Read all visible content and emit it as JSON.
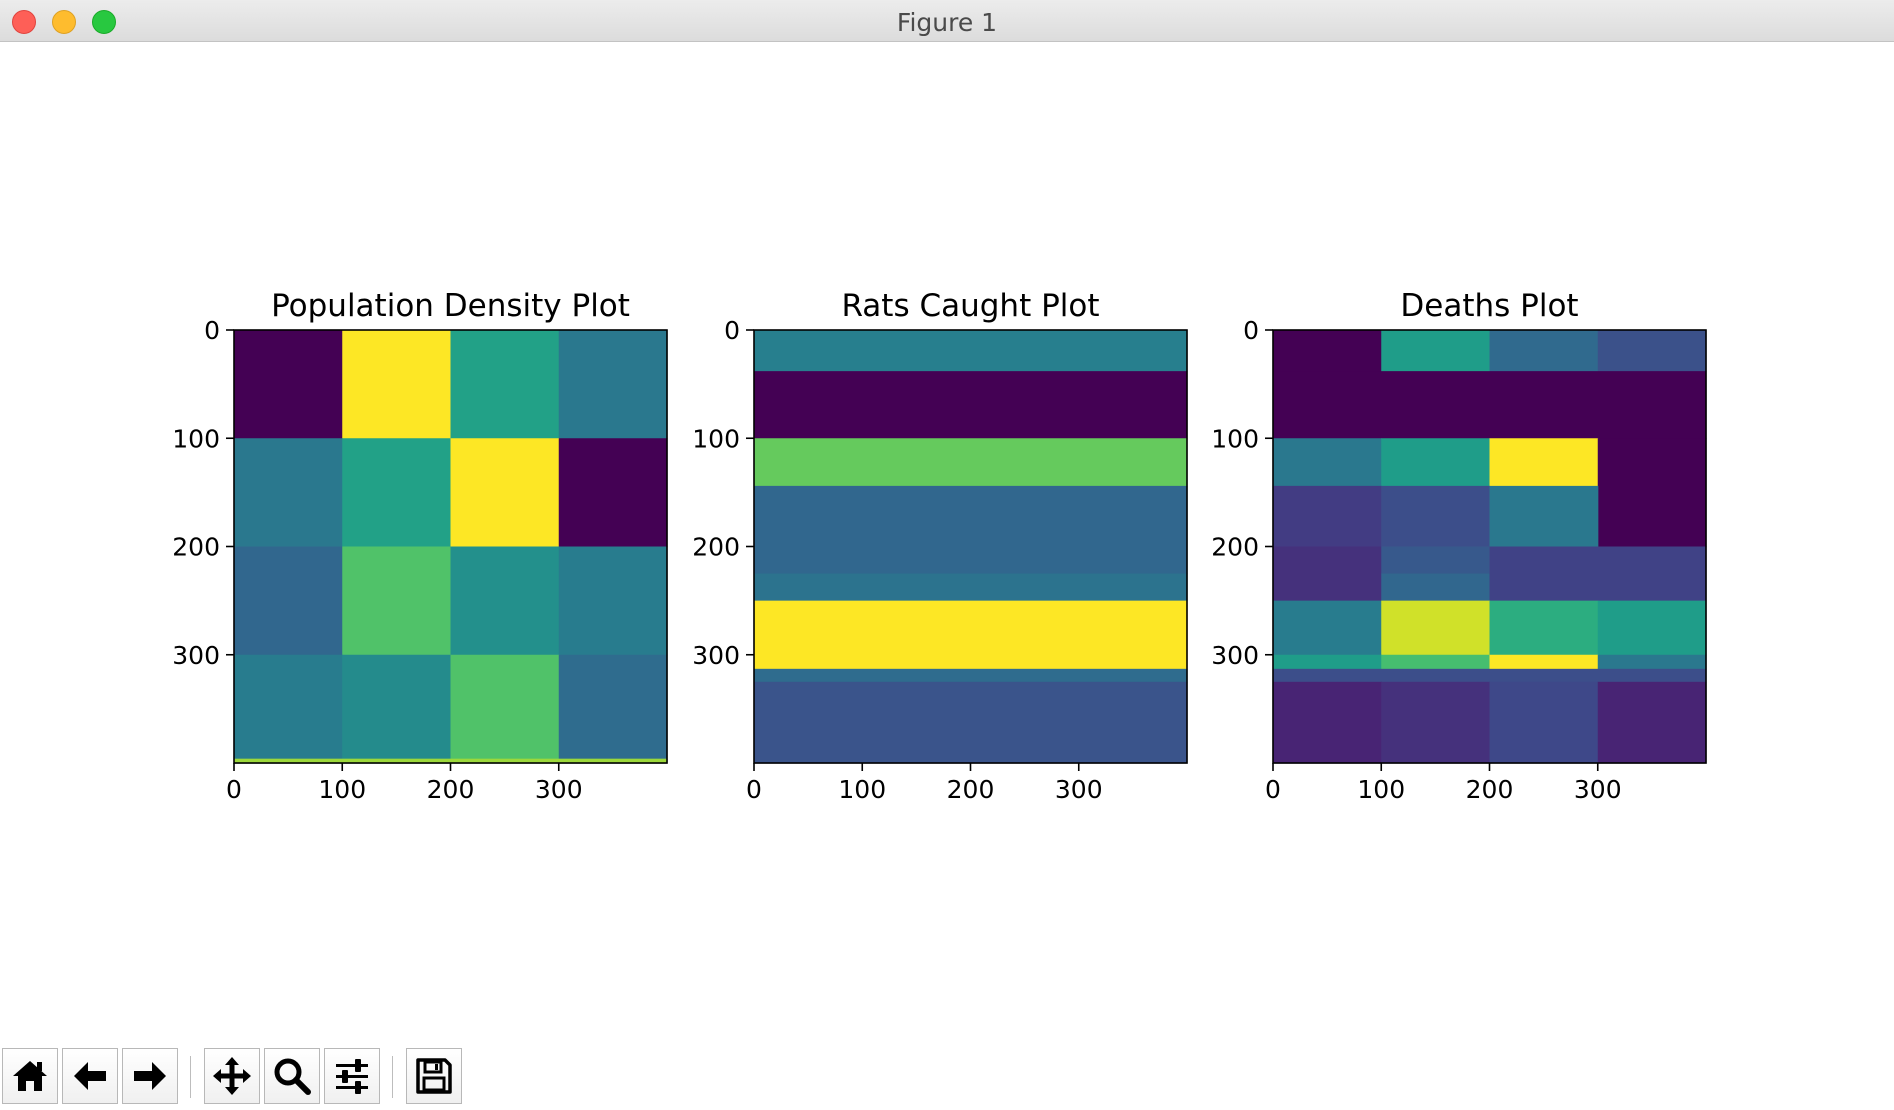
{
  "window": {
    "title": "Figure 1"
  },
  "toolbar": {
    "buttons": [
      {
        "name": "home-button",
        "icon": "home-icon"
      },
      {
        "name": "back-button",
        "icon": "arrow-left-icon"
      },
      {
        "name": "forward-button",
        "icon": "arrow-right-icon"
      },
      {
        "name": "pan-button",
        "icon": "move-icon"
      },
      {
        "name": "zoom-button",
        "icon": "magnifier-icon"
      },
      {
        "name": "configure-subplots-button",
        "icon": "sliders-icon"
      },
      {
        "name": "save-button",
        "icon": "floppy-disk-icon"
      }
    ]
  },
  "colors": {
    "viridis": [
      "#440154",
      "#482878",
      "#3e4989",
      "#31688e",
      "#26828e",
      "#1f9e89",
      "#35b779",
      "#6ece58",
      "#b5de2b",
      "#fde725"
    ]
  },
  "chart_data": [
    {
      "type": "heatmap",
      "title": "Population Density Plot",
      "colormap": "viridis",
      "xlim": [
        0,
        400
      ],
      "ylim": [
        400,
        0
      ],
      "xticks": [
        0,
        100,
        200,
        300
      ],
      "yticks": [
        0,
        100,
        200,
        300
      ],
      "cells": [
        {
          "x": [
            0,
            100
          ],
          "y": [
            0,
            100
          ],
          "value": 0.0
        },
        {
          "x": [
            100,
            200
          ],
          "y": [
            0,
            100
          ],
          "value": 1.0
        },
        {
          "x": [
            200,
            300
          ],
          "y": [
            0,
            100
          ],
          "value": 0.57
        },
        {
          "x": [
            300,
            400
          ],
          "y": [
            0,
            100
          ],
          "value": 0.4
        },
        {
          "x": [
            0,
            100
          ],
          "y": [
            100,
            200
          ],
          "value": 0.4
        },
        {
          "x": [
            100,
            200
          ],
          "y": [
            100,
            200
          ],
          "value": 0.57
        },
        {
          "x": [
            200,
            300
          ],
          "y": [
            100,
            200
          ],
          "value": 1.0
        },
        {
          "x": [
            300,
            400
          ],
          "y": [
            100,
            200
          ],
          "value": 0.0
        },
        {
          "x": [
            0,
            100
          ],
          "y": [
            200,
            300
          ],
          "value": 0.33
        },
        {
          "x": [
            100,
            200
          ],
          "y": [
            200,
            300
          ],
          "value": 0.72
        },
        {
          "x": [
            200,
            300
          ],
          "y": [
            200,
            300
          ],
          "value": 0.5
        },
        {
          "x": [
            300,
            400
          ],
          "y": [
            200,
            300
          ],
          "value": 0.42
        },
        {
          "x": [
            0,
            100
          ],
          "y": [
            300,
            400
          ],
          "value": 0.42
        },
        {
          "x": [
            100,
            200
          ],
          "y": [
            300,
            400
          ],
          "value": 0.48
        },
        {
          "x": [
            200,
            300
          ],
          "y": [
            300,
            400
          ],
          "value": 0.72
        },
        {
          "x": [
            300,
            400
          ],
          "y": [
            300,
            400
          ],
          "value": 0.35
        },
        {
          "x": [
            0,
            400
          ],
          "y": [
            396,
            400
          ],
          "value": 0.85
        }
      ]
    },
    {
      "type": "heatmap",
      "title": "Rats Caught Plot",
      "colormap": "viridis",
      "xlim": [
        0,
        400
      ],
      "ylim": [
        400,
        0
      ],
      "xticks": [
        0,
        100,
        200,
        300
      ],
      "yticks": [
        0,
        100,
        200,
        300
      ],
      "cells": [
        {
          "x": [
            0,
            400
          ],
          "y": [
            0,
            38
          ],
          "value": 0.43
        },
        {
          "x": [
            0,
            400
          ],
          "y": [
            38,
            100
          ],
          "value": 0.0
        },
        {
          "x": [
            0,
            400
          ],
          "y": [
            100,
            144
          ],
          "value": 0.76
        },
        {
          "x": [
            0,
            400
          ],
          "y": [
            144,
            225
          ],
          "value": 0.33
        },
        {
          "x": [
            0,
            400
          ],
          "y": [
            225,
            250
          ],
          "value": 0.38
        },
        {
          "x": [
            0,
            400
          ],
          "y": [
            250,
            313
          ],
          "value": 1.0
        },
        {
          "x": [
            0,
            400
          ],
          "y": [
            313,
            325
          ],
          "value": 0.35
        },
        {
          "x": [
            0,
            400
          ],
          "y": [
            325,
            400
          ],
          "value": 0.26
        }
      ]
    },
    {
      "type": "heatmap",
      "title": "Deaths Plot",
      "colormap": "viridis",
      "xlim": [
        0,
        400
      ],
      "ylim": [
        400,
        0
      ],
      "xticks": [
        0,
        100,
        200,
        300
      ],
      "yticks": [
        0,
        100,
        200,
        300
      ],
      "cells": [
        {
          "x": [
            0,
            100
          ],
          "y": [
            0,
            38
          ],
          "value": 0.0
        },
        {
          "x": [
            100,
            200
          ],
          "y": [
            0,
            38
          ],
          "value": 0.55
        },
        {
          "x": [
            200,
            300
          ],
          "y": [
            0,
            38
          ],
          "value": 0.34
        },
        {
          "x": [
            300,
            400
          ],
          "y": [
            0,
            38
          ],
          "value": 0.25
        },
        {
          "x": [
            0,
            400
          ],
          "y": [
            38,
            100
          ],
          "value": 0.0
        },
        {
          "x": [
            0,
            100
          ],
          "y": [
            100,
            144
          ],
          "value": 0.4
        },
        {
          "x": [
            100,
            200
          ],
          "y": [
            100,
            144
          ],
          "value": 0.55
        },
        {
          "x": [
            200,
            300
          ],
          "y": [
            100,
            144
          ],
          "value": 1.0
        },
        {
          "x": [
            300,
            400
          ],
          "y": [
            100,
            200
          ],
          "value": 0.0
        },
        {
          "x": [
            0,
            100
          ],
          "y": [
            144,
            200
          ],
          "value": 0.18
        },
        {
          "x": [
            100,
            200
          ],
          "y": [
            144,
            200
          ],
          "value": 0.24
        },
        {
          "x": [
            200,
            300
          ],
          "y": [
            144,
            200
          ],
          "value": 0.4
        },
        {
          "x": [
            0,
            100
          ],
          "y": [
            200,
            250
          ],
          "value": 0.14
        },
        {
          "x": [
            100,
            200
          ],
          "y": [
            200,
            225
          ],
          "value": 0.28
        },
        {
          "x": [
            100,
            200
          ],
          "y": [
            225,
            250
          ],
          "value": 0.33
        },
        {
          "x": [
            200,
            300
          ],
          "y": [
            200,
            250
          ],
          "value": 0.2
        },
        {
          "x": [
            300,
            400
          ],
          "y": [
            200,
            250
          ],
          "value": 0.2
        },
        {
          "x": [
            0,
            100
          ],
          "y": [
            250,
            300
          ],
          "value": 0.42
        },
        {
          "x": [
            100,
            200
          ],
          "y": [
            250,
            300
          ],
          "value": 0.93
        },
        {
          "x": [
            200,
            300
          ],
          "y": [
            250,
            300
          ],
          "value": 0.62
        },
        {
          "x": [
            300,
            400
          ],
          "y": [
            250,
            300
          ],
          "value": 0.55
        },
        {
          "x": [
            0,
            100
          ],
          "y": [
            300,
            313
          ],
          "value": 0.55
        },
        {
          "x": [
            100,
            200
          ],
          "y": [
            300,
            313
          ],
          "value": 0.7
        },
        {
          "x": [
            200,
            300
          ],
          "y": [
            300,
            313
          ],
          "value": 1.0
        },
        {
          "x": [
            300,
            400
          ],
          "y": [
            300,
            313
          ],
          "value": 0.4
        },
        {
          "x": [
            0,
            400
          ],
          "y": [
            313,
            325
          ],
          "value": 0.24
        },
        {
          "x": [
            0,
            100
          ],
          "y": [
            325,
            400
          ],
          "value": 0.1
        },
        {
          "x": [
            100,
            200
          ],
          "y": [
            325,
            400
          ],
          "value": 0.14
        },
        {
          "x": [
            200,
            300
          ],
          "y": [
            325,
            400
          ],
          "value": 0.22
        },
        {
          "x": [
            300,
            400
          ],
          "y": [
            325,
            400
          ],
          "value": 0.1
        }
      ]
    }
  ]
}
